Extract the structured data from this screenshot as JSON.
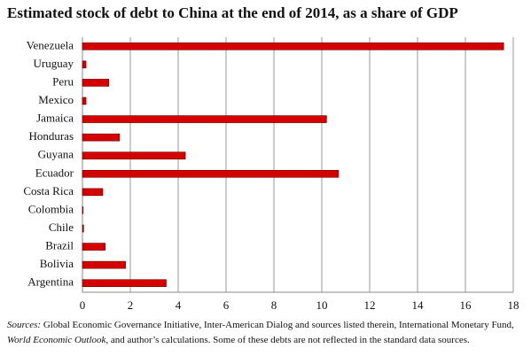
{
  "chart_data": {
    "type": "hbar",
    "title": "Estimated stock of debt to China at the end of 2014, as a share of GDP",
    "categories": [
      "Venezuela",
      "Uruguay",
      "Peru",
      "Mexico",
      "Jamaica",
      "Honduras",
      "Guyana",
      "Ecuador",
      "Costa Rica",
      "Colombia",
      "Chile",
      "Brazil",
      "Bolivia",
      "Argentina"
    ],
    "values": [
      17.6,
      0.15,
      1.1,
      0.15,
      10.2,
      1.55,
      4.3,
      10.7,
      0.85,
      0.03,
      0.05,
      0.95,
      1.8,
      3.5
    ],
    "color": "#d40000",
    "xlim": [
      0,
      18
    ],
    "xticks": [
      0,
      2,
      4,
      6,
      8,
      10,
      12,
      14,
      16,
      18
    ],
    "grid": true,
    "source": [
      "Sources:",
      " Global Economic Governance Initiative, Inter-American Dialog and sources listed therein, International Monetary Fund,",
      "World Economic Outlook",
      ", and author’s calculations. Some of these debts are not reflected in the standard data sources."
    ]
  }
}
